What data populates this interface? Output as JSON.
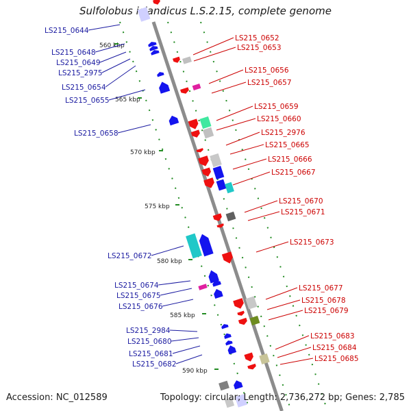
{
  "title": "Sulfolobus islandicus L.S.2.15, complete genome",
  "accession": "Accession: NC_012589",
  "stats": "Topology: circular; Length: 2,736,272 bp; Genes: 2,785",
  "colors": {
    "forward_label": "#1a1aa0",
    "reverse_label": "#cc0000",
    "backbone": "#8c8c8c",
    "tick": "#228b22",
    "blue_gene": "#1414ee",
    "red_gene": "#ee1010"
  },
  "tick_labels": [
    "560 kbp",
    "565 kbp",
    "570 kbp",
    "575 kbp",
    "580 kbp",
    "585 kbp",
    "590 kbp"
  ],
  "left_labels": [
    "LS215_0644",
    "LS215_0648",
    "LS215_0649",
    "LS215_2975",
    "LS215_0654",
    "LS215_0655",
    "LS215_0658",
    "LS215_0672",
    "LS215_0674",
    "LS215_0675",
    "LS215_0676",
    "LS215_2984",
    "LS215_0680",
    "LS215_0681",
    "LS215_0682"
  ],
  "right_labels": [
    "LS215_0652",
    "LS215_0653",
    "LS215_0656",
    "LS215_0657",
    "LS215_0659",
    "LS215_0660",
    "LS215_2976",
    "LS215_0665",
    "LS215_0666",
    "LS215_0667",
    "LS215_0670",
    "LS215_0671",
    "LS215_0673",
    "LS215_0677",
    "LS215_0678",
    "LS215_0679",
    "LS215_0683",
    "LS215_0684",
    "LS215_0685"
  ]
}
